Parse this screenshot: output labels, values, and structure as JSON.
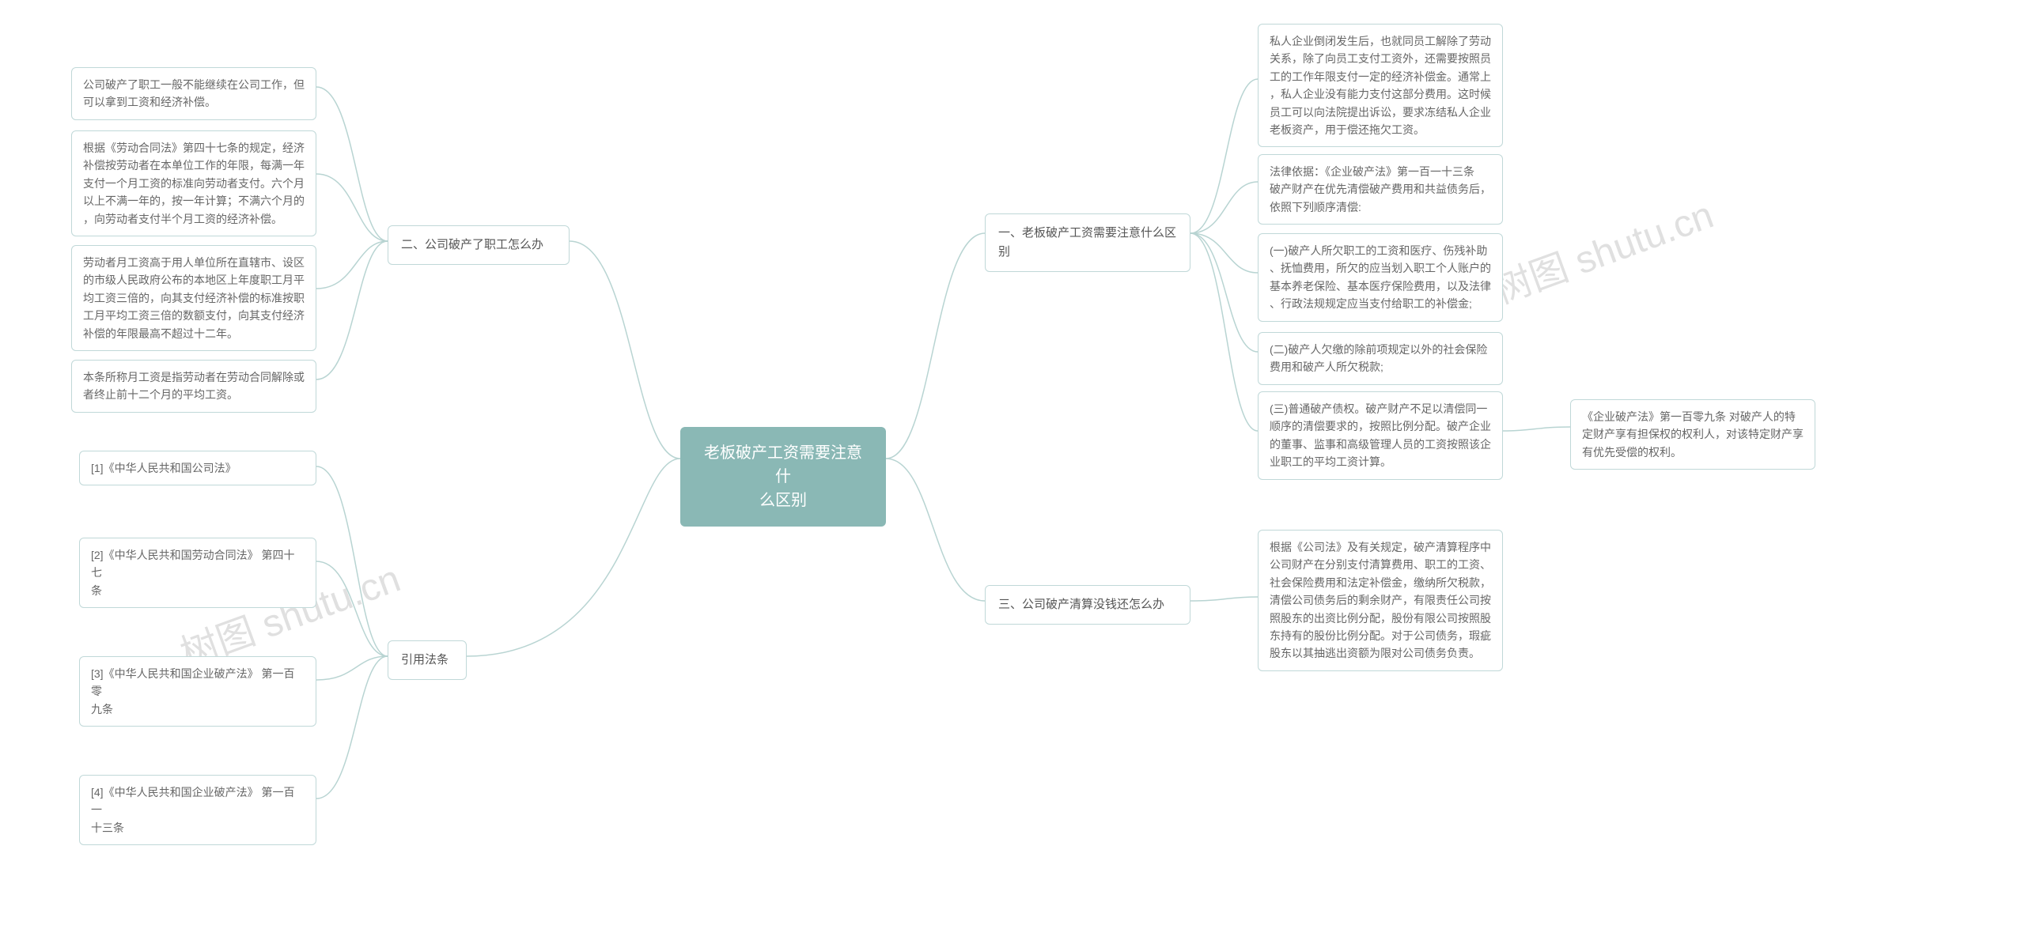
{
  "watermarks": {
    "text": "树图 shutu.cn"
  },
  "root": {
    "title": "老板破产工资需要注意什\n么区别"
  },
  "right": {
    "branch1": {
      "label": "一、老板破产工资需要注意什么区\n别",
      "leaves": [
        "私人企业倒闭发生后，也就同员工解除了劳动\n关系，除了向员工支付工资外，还需要按照员\n工的工作年限支付一定的经济补偿金。通常上\n，私人企业没有能力支付这部分费用。这时候\n员工可以向法院提出诉讼，要求冻结私人企业\n老板资产，用于偿还拖欠工资。",
        "法律依据：《企业破产法》第一百一十三条\n破产财产在优先清偿破产费用和共益债务后，\n依照下列顺序清偿:",
        "(一)破产人所欠职工的工资和医疗、伤残补助\n、抚恤费用，所欠的应当划入职工个人账户的\n基本养老保险、基本医疗保险费用，以及法律\n、行政法规规定应当支付给职工的补偿金;",
        "(二)破产人欠缴的除前项规定以外的社会保险\n费用和破产人所欠税款;",
        "(三)普通破产债权。破产财产不足以清偿同一\n顺序的清偿要求的，按照比例分配。破产企业\n的董事、监事和高级管理人员的工资按照该企\n业职工的平均工资计算。"
      ],
      "leaf5_child": "《企业破产法》第一百零九条 对破产人的特\n定财产享有担保权的权利人，对该特定财产享\n有优先受偿的权利。"
    },
    "branch3": {
      "label": "三、公司破产清算没钱还怎么办",
      "leaf": "根据《公司法》及有关规定，破产清算程序中\n公司财产在分别支付清算费用、职工的工资、\n社会保险费用和法定补偿金，缴纳所欠税款，\n清偿公司债务后的剩余财产，有限责任公司按\n照股东的出资比例分配，股份有限公司按照股\n东持有的股份比例分配。对于公司债务，瑕疵\n股东以其抽逃出资额为限对公司债务负责。"
    }
  },
  "left": {
    "branch2": {
      "label": "二、公司破产了职工怎么办",
      "leaves": [
        "公司破产了职工一般不能继续在公司工作，但\n可以拿到工资和经济补偿。",
        "根据《劳动合同法》第四十七条的规定，经济\n补偿按劳动者在本单位工作的年限，每满一年\n支付一个月工资的标准向劳动者支付。六个月\n以上不满一年的，按一年计算；不满六个月的\n，向劳动者支付半个月工资的经济补偿。",
        "劳动者月工资高于用人单位所在直辖市、设区\n的市级人民政府公布的本地区上年度职工月平\n均工资三倍的，向其支付经济补偿的标准按职\n工月平均工资三倍的数额支付，向其支付经济\n补偿的年限最高不超过十二年。",
        "本条所称月工资是指劳动者在劳动合同解除或\n者终止前十二个月的平均工资。"
      ]
    },
    "branch_ref": {
      "label": "引用法条",
      "leaves": [
        "[1]《中华人民共和国公司法》",
        "[2]《中华人民共和国劳动合同法》 第四十七\n条",
        "[3]《中华人民共和国企业破产法》 第一百零\n九条",
        "[4]《中华人民共和国企业破产法》 第一百一\n十三条"
      ]
    }
  },
  "colors": {
    "root_bg": "#8ab8b5",
    "root_text": "#ffffff",
    "node_border": "#c0d8d8",
    "node_text": "#666666",
    "connector": "#b8d4d2",
    "watermark": "#e0e0e0"
  }
}
